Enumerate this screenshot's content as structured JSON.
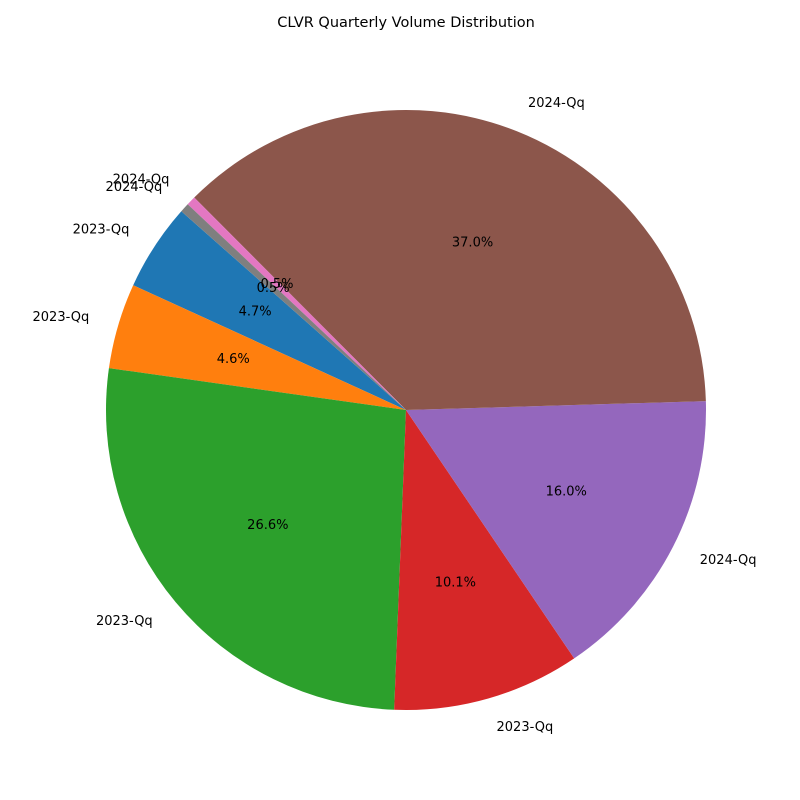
{
  "chart_data": {
    "type": "pie",
    "title": "CLVR Quarterly Volume Distribution",
    "slices": [
      {
        "label": "2023-Qq",
        "value": 4.7,
        "pct_label": "4.7%",
        "color": "#1f77b4"
      },
      {
        "label": "2023-Qq",
        "value": 4.6,
        "pct_label": "4.6%",
        "color": "#ff7f0e"
      },
      {
        "label": "2023-Qq",
        "value": 26.6,
        "pct_label": "26.6%",
        "color": "#2ca02c"
      },
      {
        "label": "2023-Qq",
        "value": 10.1,
        "pct_label": "10.1%",
        "color": "#d62728"
      },
      {
        "label": "2024-Qq",
        "value": 16.0,
        "pct_label": "16.0%",
        "color": "#9467bd"
      },
      {
        "label": "2024-Qq",
        "value": 37.0,
        "pct_label": "37.0%",
        "color": "#8c564b"
      },
      {
        "label": "2024-Qq",
        "value": 0.5,
        "pct_label": "0.5%",
        "color": "#e377c2"
      },
      {
        "label": "2024-Qq",
        "value": 0.5,
        "pct_label": "0.5%",
        "color": "#7f7f7f"
      }
    ]
  }
}
